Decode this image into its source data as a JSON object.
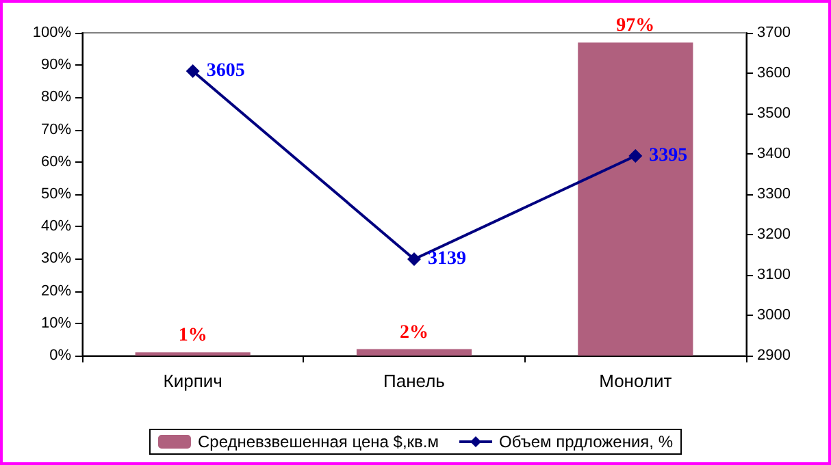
{
  "chart_data": {
    "type": "bar",
    "categories": [
      "Кирпич",
      "Панель",
      "Монолит"
    ],
    "series": [
      {
        "name": "Средневзвешенная цена $,кв.м",
        "color": "#b0607e",
        "values": [
          1,
          2,
          97
        ],
        "value_labels": [
          "1%",
          "2%",
          "97%"
        ]
      },
      {
        "name": "Объем прдложения, %",
        "type": "line",
        "axis": "y2",
        "color": "#000080",
        "values": [
          3605,
          3139,
          3395
        ]
      }
    ],
    "ylim": [
      0,
      100
    ],
    "yticks": [
      {
        "value": 0,
        "label": "0%"
      },
      {
        "value": 10,
        "label": "10%"
      },
      {
        "value": 20,
        "label": "20%"
      },
      {
        "value": 30,
        "label": "30%"
      },
      {
        "value": 40,
        "label": "40%"
      },
      {
        "value": 50,
        "label": "50%"
      },
      {
        "value": 60,
        "label": "60%"
      },
      {
        "value": 70,
        "label": "70%"
      },
      {
        "value": 80,
        "label": "80%"
      },
      {
        "value": 90,
        "label": "90%"
      },
      {
        "value": 100,
        "label": "100%"
      }
    ],
    "y2lim": [
      2900,
      3700
    ],
    "y2ticks": [
      2900,
      3000,
      3100,
      3200,
      3300,
      3400,
      3500,
      3600,
      3700
    ],
    "data_labels": true,
    "marker": "diamond",
    "grid": false,
    "legend": "bottom"
  }
}
